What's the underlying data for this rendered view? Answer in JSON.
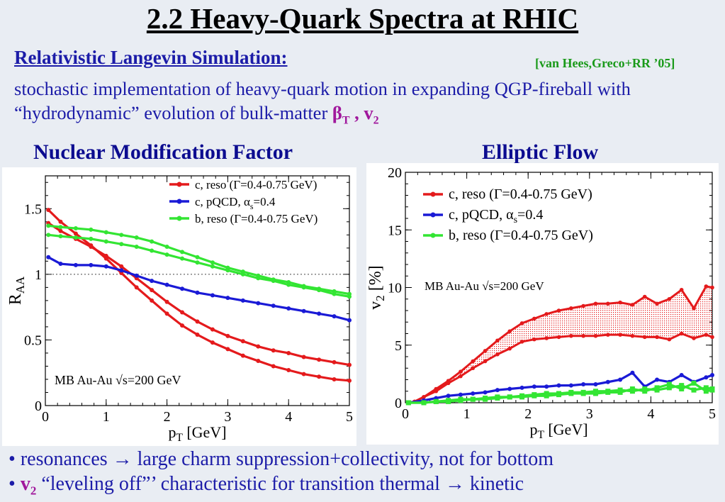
{
  "title": "2.2 Heavy-Quark Spectra at RHIC",
  "subtitle": "Relativistic Langevin Simulation:",
  "reference": "[van Hees,Greco+RR ’05]",
  "description": {
    "text": "stochastic implementation of heavy-quark motion in expanding QGP-fireball with “hydrodynamic” evolution of bulk-matter ",
    "beta": "β",
    "beta_sub": "T",
    "comma": " , ",
    "v": "v",
    "v_sub": "2"
  },
  "sections": {
    "left": "Nuclear Modification Factor",
    "right": "Elliptic Flow"
  },
  "colors": {
    "red": "#e41a1c",
    "blue": "#1a1ad6",
    "green": "#33e533",
    "title_blue": "#1c1ca8",
    "magenta": "#a0179c"
  },
  "chart_data": [
    {
      "type": "line",
      "xlabel": "p",
      "xlabel_sub": "T",
      "xlabel_unit": " [GeV]",
      "ylabel": "R",
      "ylabel_sub": "AA",
      "xlim": [
        0,
        5
      ],
      "ylim": [
        0,
        1.75
      ],
      "xticks": [
        "0",
        "1",
        "2",
        "3",
        "4",
        "5"
      ],
      "yticks": [
        "0",
        "0.5",
        "1",
        "1.5"
      ],
      "reference_line": 1,
      "annotation": "MB Au-Au √s=200 GeV",
      "legend": {
        "placement": "top-right",
        "entries": [
          {
            "text": "c, reso (Γ=0.4-0.75 GeV)",
            "color": "#e41a1c"
          },
          {
            "text": "c, pQCD, α",
            "sub": "s",
            "tail": "=0.4",
            "color": "#1a1ad6"
          },
          {
            "text": "b, reso (Γ=0.4-0.75 GeV)",
            "color": "#33e533"
          }
        ]
      },
      "series": [
        {
          "color": "#e41a1c",
          "x": [
            0.05,
            0.25,
            0.5,
            0.75,
            1,
            1.25,
            1.5,
            1.75,
            2,
            2.25,
            2.5,
            2.75,
            3,
            3.25,
            3.5,
            3.75,
            4,
            4.25,
            4.5,
            4.75,
            5
          ],
          "y": [
            1.49,
            1.4,
            1.31,
            1.22,
            1.12,
            1.01,
            0.9,
            0.8,
            0.7,
            0.61,
            0.54,
            0.48,
            0.43,
            0.38,
            0.34,
            0.3,
            0.27,
            0.24,
            0.22,
            0.2,
            0.19
          ]
        },
        {
          "color": "#e41a1c",
          "x": [
            0.05,
            0.25,
            0.5,
            0.75,
            1,
            1.25,
            1.5,
            1.75,
            2,
            2.25,
            2.5,
            2.75,
            3,
            3.25,
            3.5,
            3.75,
            4,
            4.25,
            4.5,
            4.75,
            5
          ],
          "y": [
            1.39,
            1.33,
            1.27,
            1.21,
            1.14,
            1.06,
            0.97,
            0.88,
            0.79,
            0.71,
            0.64,
            0.58,
            0.53,
            0.49,
            0.45,
            0.42,
            0.4,
            0.37,
            0.35,
            0.33,
            0.31
          ]
        },
        {
          "color": "#1a1ad6",
          "x": [
            0.05,
            0.25,
            0.5,
            0.75,
            1,
            1.25,
            1.5,
            1.75,
            2,
            2.25,
            2.5,
            2.75,
            3,
            3.25,
            3.5,
            3.75,
            4,
            4.25,
            4.5,
            4.75,
            5
          ],
          "y": [
            1.13,
            1.08,
            1.07,
            1.07,
            1.06,
            1.03,
            0.99,
            0.95,
            0.92,
            0.89,
            0.86,
            0.84,
            0.82,
            0.8,
            0.78,
            0.76,
            0.74,
            0.72,
            0.7,
            0.68,
            0.65
          ]
        },
        {
          "color": "#33e533",
          "x": [
            0.05,
            0.25,
            0.5,
            0.75,
            1,
            1.25,
            1.5,
            1.75,
            2,
            2.25,
            2.5,
            2.75,
            3,
            3.25,
            3.5,
            3.75,
            4,
            4.25,
            4.5,
            4.75,
            5
          ],
          "y": [
            1.37,
            1.36,
            1.35,
            1.34,
            1.32,
            1.3,
            1.28,
            1.25,
            1.21,
            1.17,
            1.13,
            1.09,
            1.05,
            1.02,
            0.99,
            0.96,
            0.94,
            0.91,
            0.89,
            0.87,
            0.85
          ]
        },
        {
          "color": "#33e533",
          "x": [
            0.05,
            0.25,
            0.5,
            0.75,
            1,
            1.25,
            1.5,
            1.75,
            2,
            2.25,
            2.5,
            2.75,
            3,
            3.25,
            3.5,
            3.75,
            4,
            4.25,
            4.5,
            4.75,
            5
          ],
          "y": [
            1.3,
            1.29,
            1.28,
            1.27,
            1.25,
            1.23,
            1.21,
            1.18,
            1.15,
            1.12,
            1.09,
            1.06,
            1.03,
            1.0,
            0.97,
            0.95,
            0.92,
            0.9,
            0.88,
            0.85,
            0.83
          ]
        }
      ]
    },
    {
      "type": "line",
      "xlabel": "p",
      "xlabel_sub": "T",
      "xlabel_unit": " [GeV]",
      "ylabel": "v",
      "ylabel_sub": "2",
      "ylabel_unit": " [%]",
      "xlim": [
        0,
        5
      ],
      "ylim": [
        0,
        20
      ],
      "xticks": [
        "0",
        "1",
        "2",
        "3",
        "4",
        "5"
      ],
      "yticks": [
        "0",
        "5",
        "10",
        "15",
        "20"
      ],
      "annotation": "MB Au-Au √s=200 GeV",
      "legend": {
        "placement": "top-left",
        "entries": [
          {
            "text": "c, reso (Γ=0.4-0.75 GeV)",
            "color": "#e41a1c"
          },
          {
            "text": "c, pQCD, α",
            "sub": "s",
            "tail": "=0.4",
            "color": "#1a1ad6"
          },
          {
            "text": "b, reso (Γ=0.4-0.75 GeV)",
            "color": "#33e533"
          }
        ]
      },
      "band": {
        "color": "#e41a1c",
        "x": [
          0.05,
          0.15,
          0.3,
          0.5,
          0.7,
          0.9,
          1.1,
          1.3,
          1.5,
          1.7,
          1.9,
          2.1,
          2.3,
          2.5,
          2.7,
          2.9,
          3.1,
          3.3,
          3.5,
          3.7,
          3.9,
          4.1,
          4.3,
          4.5,
          4.7,
          4.9,
          5.0
        ],
        "upper": [
          0.0,
          0.1,
          0.5,
          1.2,
          1.9,
          2.7,
          3.6,
          4.5,
          5.4,
          6.2,
          6.9,
          7.3,
          7.7,
          8.0,
          8.2,
          8.4,
          8.6,
          8.6,
          8.7,
          8.5,
          9.2,
          8.6,
          9.0,
          9.8,
          8.2,
          10.1,
          10.0
        ],
        "lower": [
          0.0,
          0.1,
          0.5,
          1.0,
          1.7,
          2.3,
          3.0,
          3.6,
          4.2,
          4.7,
          5.3,
          5.5,
          5.6,
          5.7,
          5.8,
          5.8,
          5.8,
          5.9,
          5.9,
          5.8,
          5.7,
          5.7,
          5.5,
          6.0,
          5.6,
          5.9,
          5.7
        ]
      },
      "series": [
        {
          "color": "#1a1ad6",
          "x": [
            0.05,
            0.3,
            0.5,
            0.7,
            0.9,
            1.1,
            1.3,
            1.5,
            1.7,
            1.9,
            2.1,
            2.3,
            2.5,
            2.7,
            2.9,
            3.1,
            3.3,
            3.5,
            3.7,
            3.9,
            4.1,
            4.3,
            4.5,
            4.7,
            4.9,
            5.0
          ],
          "y": [
            0.0,
            0.2,
            0.4,
            0.6,
            0.7,
            0.8,
            0.9,
            1.1,
            1.2,
            1.3,
            1.4,
            1.4,
            1.5,
            1.5,
            1.6,
            1.6,
            1.8,
            2.0,
            2.6,
            1.4,
            2.0,
            1.8,
            2.4,
            1.8,
            2.2,
            2.4
          ]
        },
        {
          "color": "#33e533",
          "x": [
            0.05,
            0.3,
            0.5,
            0.7,
            0.9,
            1.1,
            1.3,
            1.5,
            1.7,
            1.9,
            2.1,
            2.3,
            2.5,
            2.7,
            2.9,
            3.1,
            3.3,
            3.5,
            3.7,
            3.9,
            4.1,
            4.3,
            4.5,
            4.7,
            4.9,
            5.0
          ],
          "y": [
            0.0,
            0.0,
            0.1,
            0.2,
            0.3,
            0.3,
            0.4,
            0.5,
            0.5,
            0.6,
            0.7,
            0.8,
            0.8,
            0.9,
            0.9,
            1.0,
            1.0,
            1.1,
            1.0,
            1.2,
            1.1,
            1.3,
            1.5,
            1.1,
            1.3,
            1.2
          ]
        },
        {
          "color": "#33e533",
          "x": [
            0.05,
            0.3,
            0.5,
            0.7,
            0.9,
            1.1,
            1.3,
            1.5,
            1.7,
            1.9,
            2.1,
            2.3,
            2.5,
            2.7,
            2.9,
            3.1,
            3.3,
            3.5,
            3.7,
            3.9,
            4.1,
            4.3,
            4.5,
            4.7,
            4.9,
            5.0
          ],
          "y": [
            0.0,
            0.0,
            0.1,
            0.1,
            0.2,
            0.3,
            0.3,
            0.4,
            0.5,
            0.5,
            0.6,
            0.6,
            0.7,
            0.8,
            0.8,
            0.8,
            0.9,
            0.9,
            1.2,
            1.0,
            1.3,
            1.6,
            1.2,
            1.7,
            1.0,
            1.1
          ]
        }
      ]
    }
  ],
  "bullets": [
    {
      "bullet": "•",
      "text": " resonances → large charm suppression+collectivity, not for bottom"
    },
    {
      "bullet": "•",
      "v": "v",
      "v_sub": "2",
      "text": " “leveling off”’ characteristic for transition thermal → kinetic"
    }
  ]
}
